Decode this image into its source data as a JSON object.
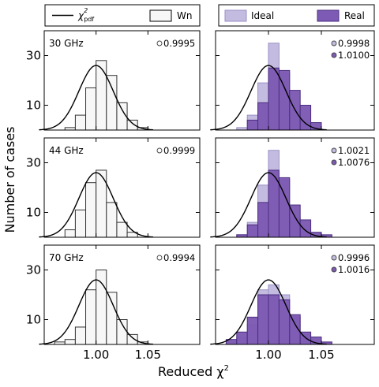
{
  "legends": {
    "left": {
      "line_label_main": "χ",
      "line_label_sup": "2",
      "line_label_sub": "pdf",
      "box_label": "Wn"
    },
    "right": {
      "ideal_label": "Ideal",
      "real_label": "Real"
    }
  },
  "xlabel_text": "Reduced χ",
  "xlabel_sup": "2",
  "ylabel": "Number of cases",
  "colors": {
    "wn_fill": "#f7f7f7",
    "ideal_fill": "#c4bce0",
    "ideal_edge": "#9a90c4",
    "real_fill": "#7d5ab3",
    "real_edge": "#4a2d80",
    "curve": "#000000"
  },
  "chart_data": [
    {
      "type": "bar",
      "panel": "30 GHz white noise",
      "frequency_label": "30 GHz",
      "bin_edges": [
        0.97,
        0.98,
        0.99,
        1.0,
        1.01,
        1.02,
        1.03,
        1.04,
        1.05
      ],
      "series": [
        {
          "name": "Wn",
          "values": [
            1,
            6,
            17,
            28,
            22,
            11,
            4,
            1
          ],
          "mean_label": "0.9995"
        }
      ],
      "curve": {
        "name": "χ2 pdf",
        "mean": 1.0,
        "sigma": 0.0165,
        "peak": 26
      },
      "xlim": [
        0.95,
        1.1
      ],
      "ylim": [
        0,
        40
      ],
      "yticks": [
        10,
        30
      ],
      "xticks": [
        1.0,
        1.05
      ],
      "xticklabels": [
        "1.00",
        "1.05"
      ]
    },
    {
      "type": "bar",
      "panel": "30 GHz ideal vs real",
      "bin_edges": [
        0.97,
        0.98,
        0.99,
        1.0,
        1.01,
        1.02,
        1.03,
        1.04,
        1.05
      ],
      "series": [
        {
          "name": "Ideal",
          "values": [
            1,
            6,
            19,
            35,
            23,
            8,
            3,
            1
          ],
          "mean_label": "0.9998"
        },
        {
          "name": "Real",
          "values": [
            0,
            4,
            11,
            25,
            24,
            16,
            10,
            3
          ],
          "mean_label": "1.0100"
        }
      ],
      "curve": {
        "name": "χ2 pdf",
        "mean": 1.0,
        "sigma": 0.0165,
        "peak": 26
      },
      "xlim": [
        0.95,
        1.1
      ],
      "ylim": [
        0,
        40
      ],
      "yticks": [
        10,
        30
      ],
      "xticks": [
        1.0,
        1.05
      ],
      "xticklabels": [
        "1.00",
        "1.05"
      ]
    },
    {
      "type": "bar",
      "panel": "44 GHz white noise",
      "frequency_label": "44 GHz",
      "bin_edges": [
        0.97,
        0.98,
        0.99,
        1.0,
        1.01,
        1.02,
        1.03,
        1.04,
        1.05
      ],
      "series": [
        {
          "name": "Wn",
          "values": [
            3,
            11,
            22,
            27,
            14,
            6,
            2,
            0
          ],
          "mean_label": "0.9999"
        }
      ],
      "curve": {
        "name": "χ2 pdf",
        "mean": 1.0,
        "sigma": 0.0165,
        "peak": 26
      },
      "xlim": [
        0.95,
        1.1
      ],
      "ylim": [
        0,
        40
      ],
      "yticks": [
        10,
        30
      ],
      "xticks": [
        1.0,
        1.05
      ],
      "xticklabels": [
        "1.00",
        "1.05"
      ]
    },
    {
      "type": "bar",
      "panel": "44 GHz ideal vs real",
      "bin_edges": [
        0.97,
        0.98,
        0.99,
        1.0,
        1.01,
        1.02,
        1.03,
        1.04,
        1.05,
        1.06
      ],
      "series": [
        {
          "name": "Ideal",
          "values": [
            1,
            6,
            21,
            35,
            23,
            8,
            3,
            1,
            0
          ],
          "mean_label": "1.0021"
        },
        {
          "name": "Real",
          "values": [
            1,
            5,
            14,
            27,
            24,
            13,
            7,
            2,
            1
          ],
          "mean_label": "1.0076"
        }
      ],
      "curve": {
        "name": "χ2 pdf",
        "mean": 1.0,
        "sigma": 0.0165,
        "peak": 26
      },
      "xlim": [
        0.95,
        1.1
      ],
      "ylim": [
        0,
        40
      ],
      "yticks": [
        10,
        30
      ],
      "xticks": [
        1.0,
        1.05
      ],
      "xticklabels": [
        "1.00",
        "1.05"
      ]
    },
    {
      "type": "bar",
      "panel": "70 GHz white noise",
      "frequency_label": "70 GHz",
      "bin_edges": [
        0.96,
        0.97,
        0.98,
        0.99,
        1.0,
        1.01,
        1.02,
        1.03,
        1.04,
        1.05
      ],
      "series": [
        {
          "name": "Wn",
          "values": [
            1,
            2,
            7,
            22,
            30,
            21,
            10,
            4,
            1
          ],
          "mean_label": "0.9994"
        }
      ],
      "curve": {
        "name": "χ2 pdf",
        "mean": 1.0,
        "sigma": 0.0165,
        "peak": 26
      },
      "xlim": [
        0.95,
        1.1
      ],
      "ylim": [
        0,
        40
      ],
      "yticks": [
        10,
        30
      ],
      "xticks": [
        1.0,
        1.05
      ],
      "xticklabels": [
        "1.00",
        "1.05"
      ]
    },
    {
      "type": "bar",
      "panel": "70 GHz ideal vs real",
      "bin_edges": [
        0.96,
        0.97,
        0.98,
        0.99,
        1.0,
        1.01,
        1.02,
        1.03,
        1.04,
        1.05,
        1.06
      ],
      "series": [
        {
          "name": "Ideal",
          "values": [
            1,
            3,
            8,
            22,
            24,
            20,
            11,
            4,
            1,
            0
          ],
          "mean_label": "0.9996"
        },
        {
          "name": "Real",
          "values": [
            2,
            5,
            11,
            20,
            20,
            18,
            12,
            5,
            3,
            1
          ],
          "mean_label": "1.0016"
        }
      ],
      "curve": {
        "name": "χ2 pdf",
        "mean": 1.0,
        "sigma": 0.0165,
        "peak": 26
      },
      "xlim": [
        0.95,
        1.1
      ],
      "ylim": [
        0,
        40
      ],
      "yticks": [
        10,
        30
      ],
      "xticks": [
        1.0,
        1.05
      ],
      "xticklabels": [
        "1.00",
        "1.05"
      ]
    }
  ]
}
